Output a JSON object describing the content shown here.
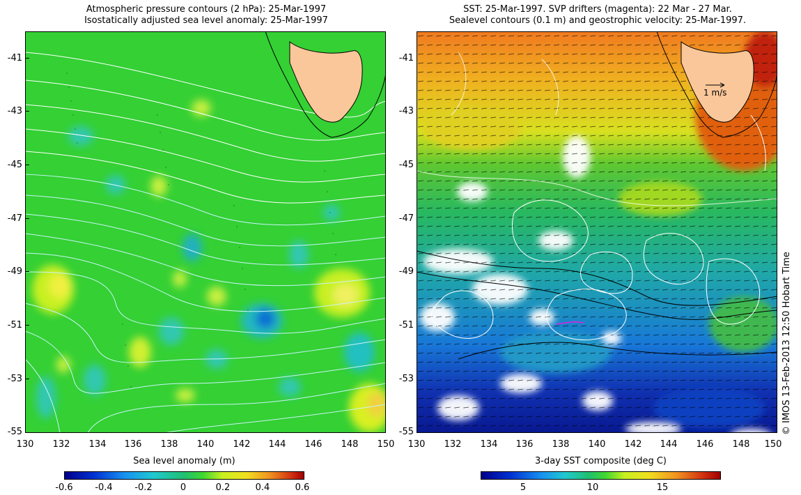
{
  "left_panel": {
    "title_line1": "Atmospheric pressure contours (2 hPa): 25-Mar-1997",
    "title_line2": "Isostatically adjusted sea level anomaly: 25-Mar-1997",
    "y_ticks": [
      "-41",
      "-43",
      "-45",
      "-47",
      "-49",
      "-51",
      "-53",
      "-55"
    ],
    "x_ticks": [
      "130",
      "132",
      "134",
      "136",
      "138",
      "140",
      "142",
      "144",
      "146",
      "148",
      "150"
    ],
    "colorbar_title": "Sea level anomaly (m)",
    "colorbar_ticks": [
      "-0.6",
      "-0.4",
      "-0.2",
      "0",
      "0.2",
      "0.4",
      "0.6"
    ]
  },
  "right_panel": {
    "title_line1": "SST: 25-Mar-1997. SVP drifters (magenta): 22 Mar - 27 Mar.",
    "title_line2": "Sealevel contours (0.1 m) and geostrophic velocity: 25-Mar-1997.",
    "y_ticks": [
      "-41",
      "-43",
      "-45",
      "-47",
      "-49",
      "-51",
      "-53",
      "-55"
    ],
    "x_ticks": [
      "130",
      "132",
      "134",
      "136",
      "138",
      "140",
      "142",
      "144",
      "146",
      "148",
      "150"
    ],
    "scale_label": "1 m/s",
    "colorbar_title": "3-day SST composite (deg C)",
    "colorbar_ticks": [
      "5",
      "10",
      "15"
    ]
  },
  "credit": "© IMOS 13-Feb-2013 12:50 Hobart Time",
  "colors": {
    "land": "#f9c79a",
    "sla_base": "#2fd22f",
    "contour_white": "#ffffff",
    "contour_cyan": "#9fe8f0"
  }
}
